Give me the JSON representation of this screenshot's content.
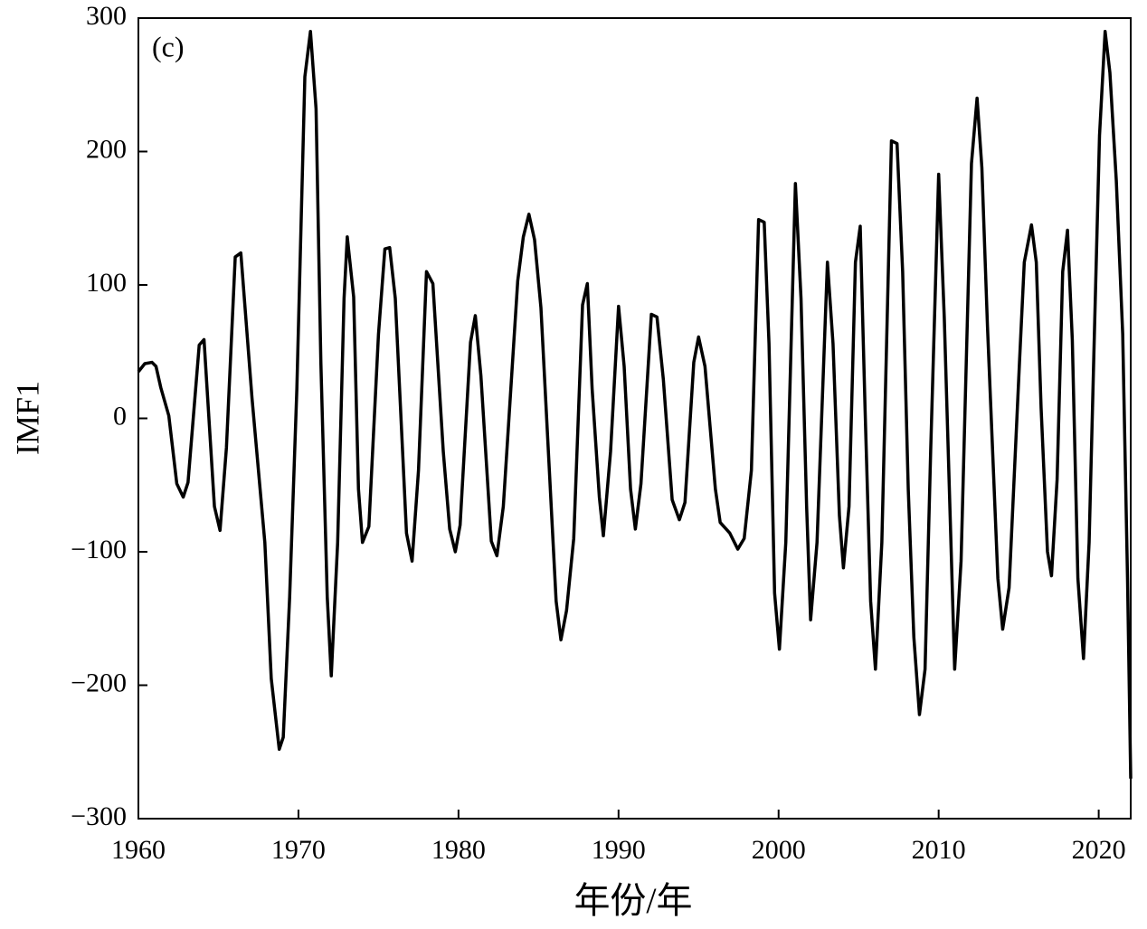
{
  "chart_data": {
    "type": "line",
    "annotation": "(c)",
    "x_label": "年份/年",
    "y_label": "IMF1",
    "color": "#000000",
    "xlim": [
      1960,
      2022
    ],
    "xticks": [
      1960,
      1970,
      1980,
      1990,
      2000,
      2010,
      2020
    ],
    "ylim": [
      -300,
      300
    ],
    "yticks": [
      {
        "value": -300,
        "label": "−300"
      },
      {
        "value": -200,
        "label": "−200"
      },
      {
        "value": -100,
        "label": "−100"
      },
      0,
      100,
      200,
      300
    ],
    "x": [
      1960,
      1960.4,
      1960.85,
      1961.1,
      1961.4,
      1961.9,
      1962.4,
      1962.8,
      1963.1,
      1963.8,
      1964.1,
      1964.75,
      1965.1,
      1965.5,
      1966.05,
      1966.4,
      1967.1,
      1967.9,
      1968.3,
      1968.8,
      1969.05,
      1969.45,
      1969.9,
      1970.4,
      1970.75,
      1971.1,
      1971.4,
      1971.8,
      1972.05,
      1972.45,
      1972.85,
      1973.05,
      1973.45,
      1973.75,
      1974.0,
      1974.4,
      1975.0,
      1975.4,
      1975.7,
      1976.05,
      1976.75,
      1977.1,
      1977.5,
      1978.0,
      1978.4,
      1979.05,
      1979.45,
      1979.8,
      1980.1,
      1980.75,
      1981.05,
      1981.4,
      1982.05,
      1982.4,
      1982.8,
      1983.7,
      1984.05,
      1984.4,
      1984.75,
      1985.15,
      1986.1,
      1986.4,
      1986.75,
      1987.2,
      1987.75,
      1988.05,
      1988.35,
      1988.8,
      1989.05,
      1989.5,
      1990.0,
      1990.35,
      1990.75,
      1991.05,
      1991.4,
      1992.05,
      1992.4,
      1992.8,
      1993.35,
      1993.8,
      1994.15,
      1994.7,
      1995.0,
      1995.4,
      1996.05,
      1996.35,
      1996.95,
      1997.45,
      1997.85,
      1998.3,
      1998.75,
      1999.1,
      1999.4,
      1999.75,
      2000.05,
      2000.45,
      2001.05,
      2001.4,
      2001.75,
      2002.0,
      2002.4,
      2003.05,
      2003.4,
      2003.8,
      2004.05,
      2004.4,
      2004.8,
      2005.1,
      2005.4,
      2005.75,
      2006.05,
      2006.45,
      2007.05,
      2007.4,
      2007.75,
      2008.1,
      2008.45,
      2008.8,
      2009.15,
      2009.5,
      2010.0,
      2010.35,
      2010.75,
      2011.0,
      2011.4,
      2012.05,
      2012.4,
      2012.7,
      2013.05,
      2013.7,
      2014.0,
      2014.4,
      2015.05,
      2015.35,
      2015.8,
      2016.1,
      2016.4,
      2016.8,
      2017.05,
      2017.4,
      2017.75,
      2018.05,
      2018.35,
      2018.7,
      2019.05,
      2019.4,
      2019.7,
      2020.05,
      2020.4,
      2020.7,
      2021.1,
      2021.5,
      2021.8,
      2022.0
    ],
    "values": [
      35,
      41,
      42,
      39,
      23,
      2,
      -49,
      -59,
      -48,
      55,
      59,
      -66,
      -84,
      -22,
      121,
      124,
      15,
      -93,
      -195,
      -248,
      -239,
      -134,
      22,
      256,
      290,
      232,
      42,
      -134,
      -193,
      -93,
      90,
      136,
      91,
      -53,
      -93,
      -81,
      63,
      127,
      128,
      90,
      -86,
      -107,
      -39,
      110,
      101,
      -25,
      -83,
      -100,
      -80,
      57,
      77,
      32,
      -92,
      -103,
      -66,
      103,
      136,
      153,
      134,
      83,
      -137,
      -166,
      -144,
      -90,
      85,
      101,
      22,
      -59,
      -88,
      -25,
      84,
      39,
      -53,
      -83,
      -49,
      78,
      76,
      29,
      -61,
      -76,
      -63,
      42,
      61,
      39,
      -53,
      -78,
      -86,
      -98,
      -90,
      -39,
      149,
      147,
      56,
      -131,
      -173,
      -93,
      176,
      90,
      -66,
      -151,
      -93,
      117,
      56,
      -73,
      -112,
      -66,
      117,
      144,
      8,
      -137,
      -188,
      -93,
      208,
      206,
      110,
      -53,
      -164,
      -222,
      -188,
      -25,
      183,
      76,
      -86,
      -188,
      -107,
      191,
      240,
      188,
      69,
      -120,
      -158,
      -127,
      42,
      117,
      145,
      117,
      8,
      -100,
      -118,
      -46,
      110,
      141,
      59,
      -120,
      -180,
      -93,
      49,
      212,
      290,
      259,
      178,
      63,
      -120,
      -270
    ]
  }
}
